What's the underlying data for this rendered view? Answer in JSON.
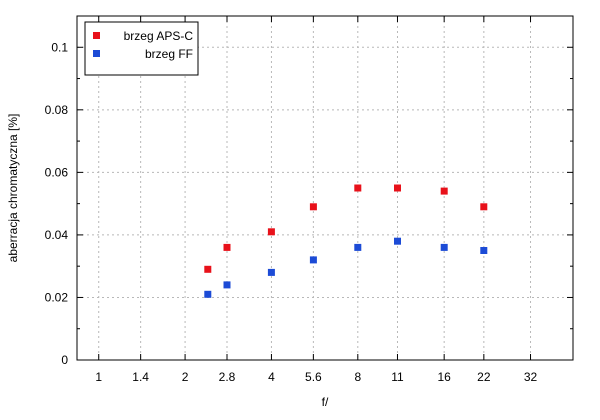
{
  "chart_data": {
    "type": "scatter",
    "title": "",
    "xlabel": "f/",
    "ylabel": "aberracja chromatyczna [%]",
    "x_scale": "log2",
    "x_ticks": [
      "1",
      "1.4",
      "2",
      "2.8",
      "4",
      "5.6",
      "8",
      "11",
      "16",
      "22",
      "32"
    ],
    "xlim": [
      0.84,
      45
    ],
    "ylim": [
      0,
      0.11
    ],
    "y_ticks": [
      "0",
      "0.02",
      "0.04",
      "0.06",
      "0.08",
      "0.1"
    ],
    "grid": true,
    "legend_position": "top-left",
    "series": [
      {
        "name": "brzeg APS-C",
        "color": "#e8111a",
        "x": [
          2.4,
          2.8,
          4,
          5.6,
          8,
          11,
          16,
          22
        ],
        "y": [
          0.029,
          0.036,
          0.041,
          0.049,
          0.055,
          0.055,
          0.054,
          0.049
        ]
      },
      {
        "name": "brzeg FF",
        "color": "#1c4bd6",
        "x": [
          2.4,
          2.8,
          4,
          5.6,
          8,
          11,
          16,
          22
        ],
        "y": [
          0.021,
          0.024,
          0.028,
          0.032,
          0.036,
          0.038,
          0.036,
          0.035
        ]
      }
    ]
  }
}
